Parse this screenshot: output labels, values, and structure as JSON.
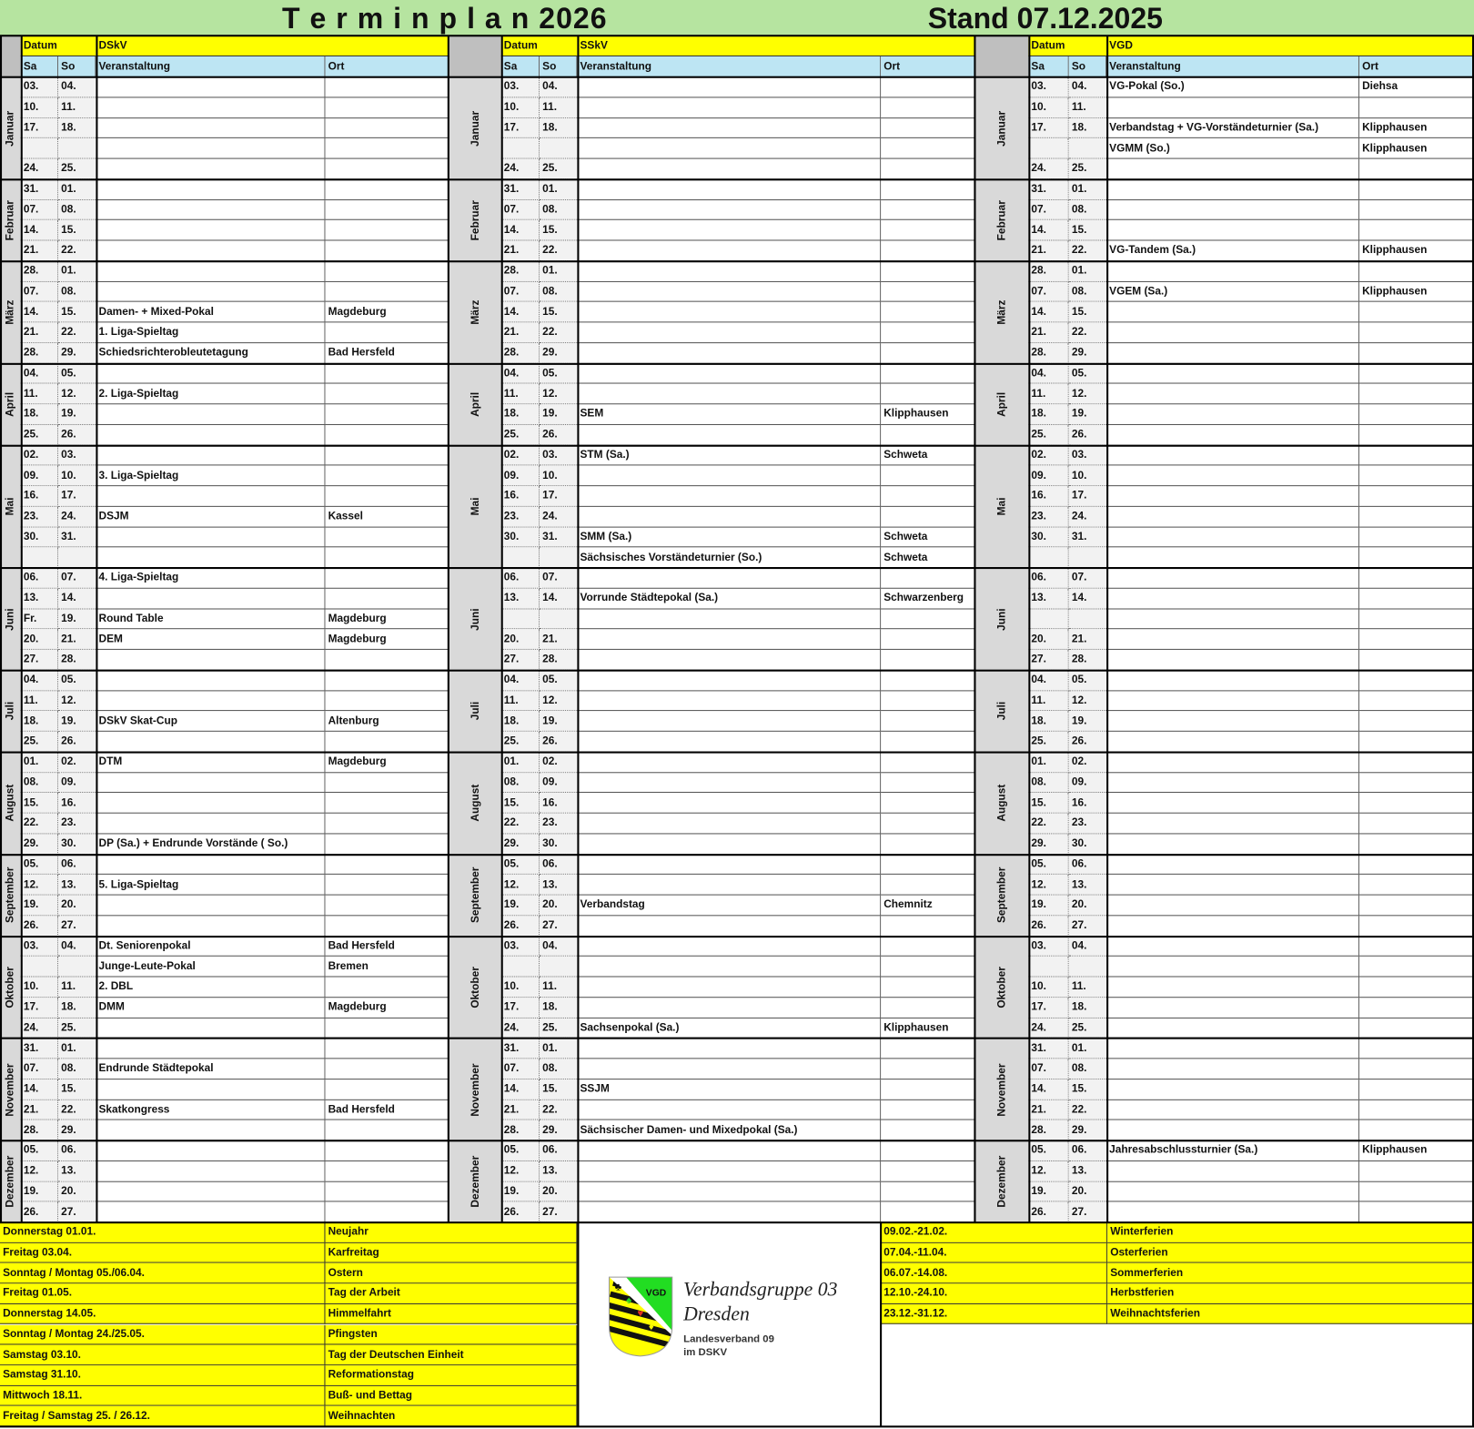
{
  "title": "T e r m i n p l a n 2026",
  "stand": "Stand 07.12.2025",
  "header": {
    "datum": "Datum",
    "sa": "Sa",
    "so": "So",
    "veranstaltung": "Veranstaltung",
    "ort": "Ort"
  },
  "blocks": [
    {
      "org": "DSkV"
    },
    {
      "org": "SSkV"
    },
    {
      "org": "VGD"
    }
  ],
  "colors": {
    "title_bg": "#b6e4a0",
    "header_yellow": "#ffff00",
    "header_blue": "#bde5f3",
    "month_grey": "#d9d9d9"
  },
  "months": [
    {
      "name": "Januar",
      "rows": [
        [
          "03.",
          "04.",
          "",
          "",
          "03.",
          "04.",
          "",
          "",
          "03.",
          "04.",
          "VG-Pokal (So.)",
          "Diehsa"
        ],
        [
          "10.",
          "11.",
          "",
          "",
          "10.",
          "11.",
          "",
          "",
          "10.",
          "11.",
          "",
          ""
        ],
        [
          "17.",
          "18.",
          "",
          "",
          "17.",
          "18.",
          "",
          "",
          "17.",
          "18.",
          "Verbandstag + VG-Vorständeturnier (Sa.)",
          "Klipphausen"
        ],
        [
          "",
          "",
          "",
          "",
          "",
          "",
          "",
          "",
          "",
          "",
          "VGMM (So.)",
          "Klipphausen"
        ],
        [
          "24.",
          "25.",
          "",
          "",
          "24.",
          "25.",
          "",
          "",
          "24.",
          "25.",
          "",
          ""
        ]
      ]
    },
    {
      "name": "Februar",
      "rows": [
        [
          "31.",
          "01.",
          "",
          "",
          "31.",
          "01.",
          "",
          "",
          "31.",
          "01.",
          "",
          ""
        ],
        [
          "07.",
          "08.",
          "",
          "",
          "07.",
          "08.",
          "",
          "",
          "07.",
          "08.",
          "",
          ""
        ],
        [
          "14.",
          "15.",
          "",
          "",
          "14.",
          "15.",
          "",
          "",
          "14.",
          "15.",
          "",
          ""
        ],
        [
          "21.",
          "22.",
          "",
          "",
          "21.",
          "22.",
          "",
          "",
          "21.",
          "22.",
          "VG-Tandem (Sa.)",
          "Klipphausen"
        ]
      ]
    },
    {
      "name": "März",
      "rows": [
        [
          "28.",
          "01.",
          "",
          "",
          "28.",
          "01.",
          "",
          "",
          "28.",
          "01.",
          "",
          ""
        ],
        [
          "07.",
          "08.",
          "",
          "",
          "07.",
          "08.",
          "",
          "",
          "07.",
          "08.",
          "VGEM (Sa.)",
          "Klipphausen"
        ],
        [
          "14.",
          "15.",
          "Damen- + Mixed-Pokal",
          "Magdeburg",
          "14.",
          "15.",
          "",
          "",
          "14.",
          "15.",
          "",
          ""
        ],
        [
          "21.",
          "22.",
          "1. Liga-Spieltag",
          "",
          "21.",
          "22.",
          "",
          "",
          "21.",
          "22.",
          "",
          ""
        ],
        [
          "28.",
          "29.",
          "Schiedsrichterobleutetagung",
          "Bad Hersfeld",
          "28.",
          "29.",
          "",
          "",
          "28.",
          "29.",
          "",
          ""
        ]
      ]
    },
    {
      "name": "April",
      "rows": [
        [
          "04.",
          "05.",
          "",
          "",
          "04.",
          "05.",
          "",
          "",
          "04.",
          "05.",
          "",
          ""
        ],
        [
          "11.",
          "12.",
          "2. Liga-Spieltag",
          "",
          "11.",
          "12.",
          "",
          "",
          "11.",
          "12.",
          "",
          ""
        ],
        [
          "18.",
          "19.",
          "",
          "",
          "18.",
          "19.",
          "SEM",
          "Klipphausen",
          "18.",
          "19.",
          "",
          ""
        ],
        [
          "25.",
          "26.",
          "",
          "",
          "25.",
          "26.",
          "",
          "",
          "25.",
          "26.",
          "",
          ""
        ]
      ]
    },
    {
      "name": "Mai",
      "rows": [
        [
          "02.",
          "03.",
          "",
          "",
          "02.",
          "03.",
          "STM (Sa.)",
          "Schweta",
          "02.",
          "03.",
          "",
          ""
        ],
        [
          "09.",
          "10.",
          "3. Liga-Spieltag",
          "",
          "09.",
          "10.",
          "",
          "",
          "09.",
          "10.",
          "",
          ""
        ],
        [
          "16.",
          "17.",
          "",
          "",
          "16.",
          "17.",
          "",
          "",
          "16.",
          "17.",
          "",
          ""
        ],
        [
          "23.",
          "24.",
          "DSJM",
          "Kassel",
          "23.",
          "24.",
          "",
          "",
          "23.",
          "24.",
          "",
          ""
        ],
        [
          "30.",
          "31.",
          "",
          "",
          "30.",
          "31.",
          "SMM (Sa.)",
          "Schweta",
          "30.",
          "31.",
          "",
          ""
        ],
        [
          "",
          "",
          "",
          "",
          "",
          "",
          "Sächsisches Vorständeturnier (So.)",
          "Schweta",
          "",
          "",
          "",
          ""
        ]
      ]
    },
    {
      "name": "Juni",
      "rows": [
        [
          "06.",
          "07.",
          "4. Liga-Spieltag",
          "",
          "06.",
          "07.",
          "",
          "",
          "06.",
          "07.",
          "",
          ""
        ],
        [
          "13.",
          "14.",
          "",
          "",
          "13.",
          "14.",
          "Vorrunde Städtepokal (Sa.)",
          "Schwarzenberg",
          "13.",
          "14.",
          "",
          ""
        ],
        [
          "Fr.",
          "19.",
          "Round Table",
          "Magdeburg",
          "",
          "",
          "",
          "",
          "",
          "",
          "",
          ""
        ],
        [
          "20.",
          "21.",
          "DEM",
          "Magdeburg",
          "20.",
          "21.",
          "",
          "",
          "20.",
          "21.",
          "",
          ""
        ],
        [
          "27.",
          "28.",
          "",
          "",
          "27.",
          "28.",
          "",
          "",
          "27.",
          "28.",
          "",
          ""
        ]
      ]
    },
    {
      "name": "Juli",
      "rows": [
        [
          "04.",
          "05.",
          "",
          "",
          "04.",
          "05.",
          "",
          "",
          "04.",
          "05.",
          "",
          ""
        ],
        [
          "11.",
          "12.",
          "",
          "",
          "11.",
          "12.",
          "",
          "",
          "11.",
          "12.",
          "",
          ""
        ],
        [
          "18.",
          "19.",
          "DSkV Skat-Cup",
          "Altenburg",
          "18.",
          "19.",
          "",
          "",
          "18.",
          "19.",
          "",
          ""
        ],
        [
          "25.",
          "26.",
          "",
          "",
          "25.",
          "26.",
          "",
          "",
          "25.",
          "26.",
          "",
          ""
        ]
      ]
    },
    {
      "name": "August",
      "rows": [
        [
          "01.",
          "02.",
          "DTM",
          "Magdeburg",
          "01.",
          "02.",
          "",
          "",
          "01.",
          "02.",
          "",
          ""
        ],
        [
          "08.",
          "09.",
          "",
          "",
          "08.",
          "09.",
          "",
          "",
          "08.",
          "09.",
          "",
          ""
        ],
        [
          "15.",
          "16.",
          "",
          "",
          "15.",
          "16.",
          "",
          "",
          "15.",
          "16.",
          "",
          ""
        ],
        [
          "22.",
          "23.",
          "",
          "",
          "22.",
          "23.",
          "",
          "",
          "22.",
          "23.",
          "",
          ""
        ],
        [
          "29.",
          "30.",
          "DP (Sa.) + Endrunde Vorstände ( So.)",
          "",
          "29.",
          "30.",
          "",
          "",
          "29.",
          "30.",
          "",
          ""
        ]
      ]
    },
    {
      "name": "September",
      "rows": [
        [
          "05.",
          "06.",
          "",
          "",
          "05.",
          "06.",
          "",
          "",
          "05.",
          "06.",
          "",
          ""
        ],
        [
          "12.",
          "13.",
          "5. Liga-Spieltag",
          "",
          "12.",
          "13.",
          "",
          "",
          "12.",
          "13.",
          "",
          ""
        ],
        [
          "19.",
          "20.",
          "",
          "",
          "19.",
          "20.",
          "Verbandstag",
          "Chemnitz",
          "19.",
          "20.",
          "",
          ""
        ],
        [
          "26.",
          "27.",
          "",
          "",
          "26.",
          "27.",
          "",
          "",
          "26.",
          "27.",
          "",
          ""
        ]
      ]
    },
    {
      "name": "Oktober",
      "rows": [
        [
          "03.",
          "04.",
          "Dt. Seniorenpokal",
          "Bad Hersfeld",
          "03.",
          "04.",
          "",
          "",
          "03.",
          "04.",
          "",
          ""
        ],
        [
          "",
          "",
          "Junge-Leute-Pokal",
          "Bremen",
          "",
          "",
          "",
          "",
          "",
          "",
          "",
          ""
        ],
        [
          "10.",
          "11.",
          "2. DBL",
          "",
          "10.",
          "11.",
          "",
          "",
          "10.",
          "11.",
          "",
          ""
        ],
        [
          "17.",
          "18.",
          "DMM",
          "Magdeburg",
          "17.",
          "18.",
          "",
          "",
          "17.",
          "18.",
          "",
          ""
        ],
        [
          "24.",
          "25.",
          "",
          "",
          "24.",
          "25.",
          "Sachsenpokal (Sa.)",
          "Klipphausen",
          "24.",
          "25.",
          "",
          ""
        ]
      ]
    },
    {
      "name": "November",
      "rows": [
        [
          "31.",
          "01.",
          "",
          "",
          "31.",
          "01.",
          "",
          "",
          "31.",
          "01.",
          "",
          ""
        ],
        [
          "07.",
          "08.",
          "Endrunde Städtepokal",
          "",
          "07.",
          "08.",
          "",
          "",
          "07.",
          "08.",
          "",
          ""
        ],
        [
          "14.",
          "15.",
          "",
          "",
          "14.",
          "15.",
          "SSJM",
          "",
          "14.",
          "15.",
          "",
          ""
        ],
        [
          "21.",
          "22.",
          "Skatkongress",
          "Bad Hersfeld",
          "21.",
          "22.",
          "",
          "",
          "21.",
          "22.",
          "",
          ""
        ],
        [
          "28.",
          "29.",
          "",
          "",
          "28.",
          "29.",
          "Sächsischer Damen- und Mixedpokal (Sa.)",
          "",
          "28.",
          "29.",
          "",
          ""
        ]
      ]
    },
    {
      "name": "Dezember",
      "rows": [
        [
          "05.",
          "06.",
          "",
          "",
          "05.",
          "06.",
          "",
          "",
          "05.",
          "06.",
          "Jahresabschlussturnier (Sa.)",
          "Klipphausen"
        ],
        [
          "12.",
          "13.",
          "",
          "",
          "12.",
          "13.",
          "",
          "",
          "12.",
          "13.",
          "",
          ""
        ],
        [
          "19.",
          "20.",
          "",
          "",
          "19.",
          "20.",
          "",
          "",
          "19.",
          "20.",
          "",
          ""
        ],
        [
          "26.",
          "27.",
          "",
          "",
          "26.",
          "27.",
          "",
          "",
          "26.",
          "27.",
          "",
          ""
        ]
      ]
    }
  ],
  "holidays": [
    {
      "date": "Donnerstag 01.01.",
      "name": "Neujahr"
    },
    {
      "date": "Freitag 03.04.",
      "name": "Karfreitag"
    },
    {
      "date": "Sonntag / Montag 05./06.04.",
      "name": "Ostern"
    },
    {
      "date": "Freitag 01.05.",
      "name": "Tag der Arbeit"
    },
    {
      "date": "Donnerstag 14.05.",
      "name": "Himmelfahrt"
    },
    {
      "date": "Sonntag / Montag 24./25.05.",
      "name": "Pfingsten"
    },
    {
      "date": "Samstag 03.10.",
      "name": "Tag der Deutschen Einheit"
    },
    {
      "date": "Samstag 31.10.",
      "name": "Reformationstag"
    },
    {
      "date": "Mittwoch 18.11.",
      "name": "Buß- und Bettag"
    },
    {
      "date": "Freitag / Samstag  25. / 26.12.",
      "name": "Weihnachten"
    }
  ],
  "ferien": [
    {
      "range": "09.02.-21.02.",
      "name": "Winterferien"
    },
    {
      "range": "07.04.-11.04.",
      "name": "Osterferien"
    },
    {
      "range": "06.07.-14.08.",
      "name": "Sommerferien"
    },
    {
      "range": "12.10.-24.10.",
      "name": "Herbstferien"
    },
    {
      "range": "23.12.-31.12.",
      "name": "Weihnachtsferien"
    }
  ],
  "logo": {
    "badge": "VGD",
    "line1": "Verbandsgruppe 03",
    "line2": "Dresden",
    "sub1": "Landesverband 09",
    "sub2": "im DSKV"
  }
}
